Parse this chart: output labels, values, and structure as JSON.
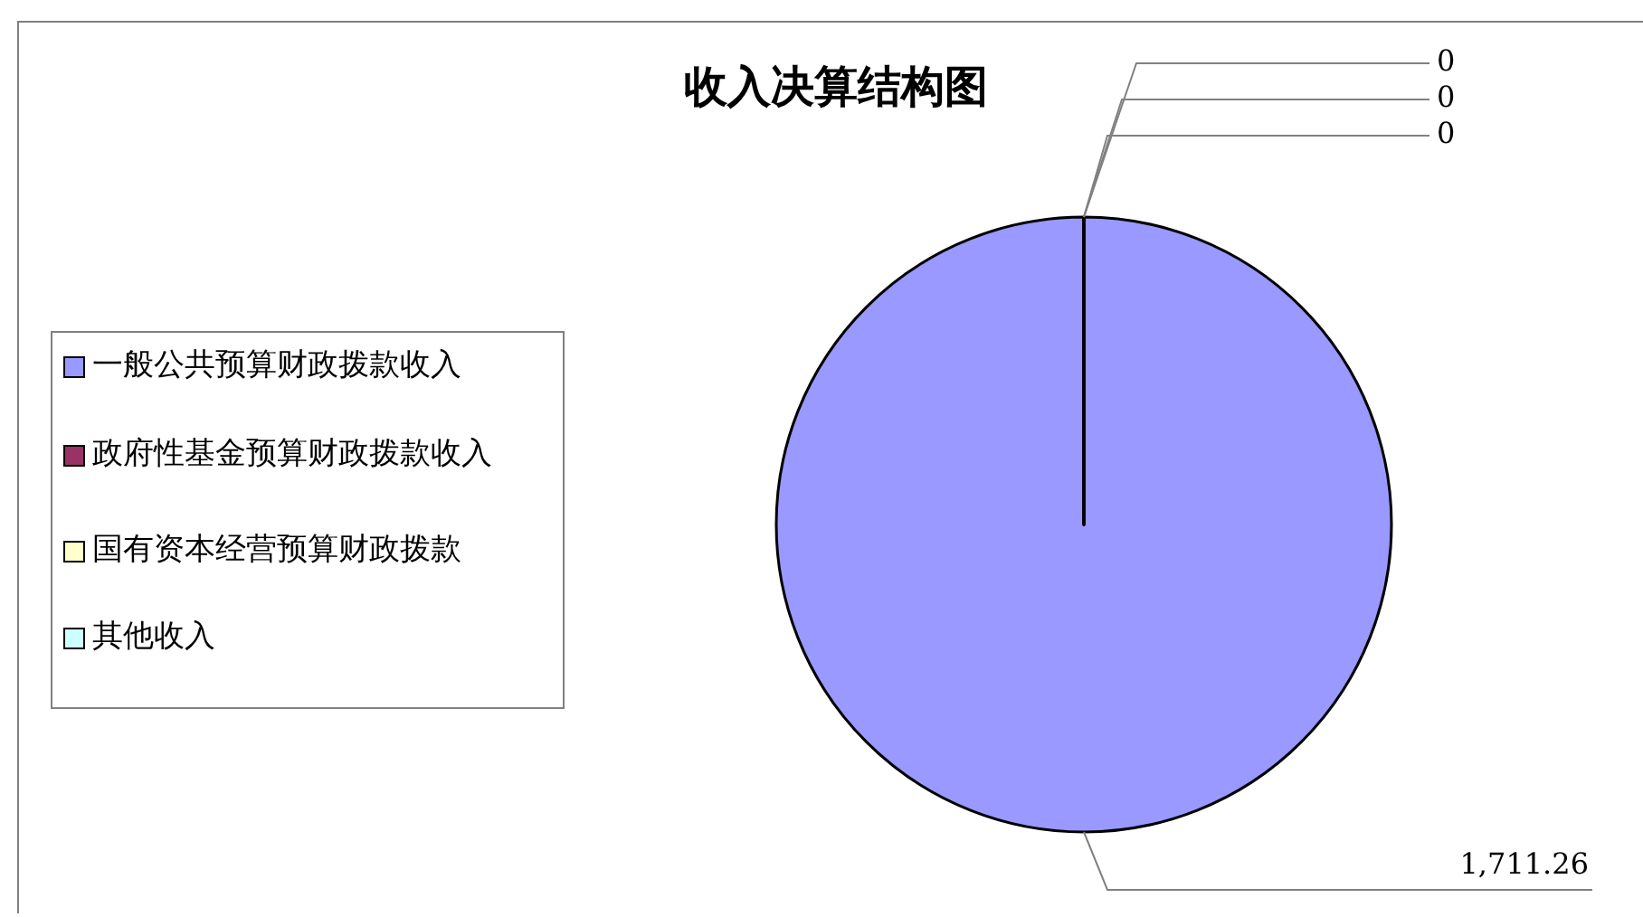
{
  "chart_data": {
    "type": "pie",
    "title": "收入决算结构图",
    "categories": [
      "一般公共预算财政拨款收入",
      "政府性基金预算财政拨款收入",
      "国有资本经营预算财政拨款",
      "其他收入"
    ],
    "values": [
      1711.26,
      0,
      0,
      0
    ],
    "value_labels": [
      "1,711.26",
      "0",
      "0",
      "0"
    ],
    "colors": [
      "#9999ff",
      "#993366",
      "#ffffcc",
      "#ccffff"
    ],
    "legend": "left"
  }
}
